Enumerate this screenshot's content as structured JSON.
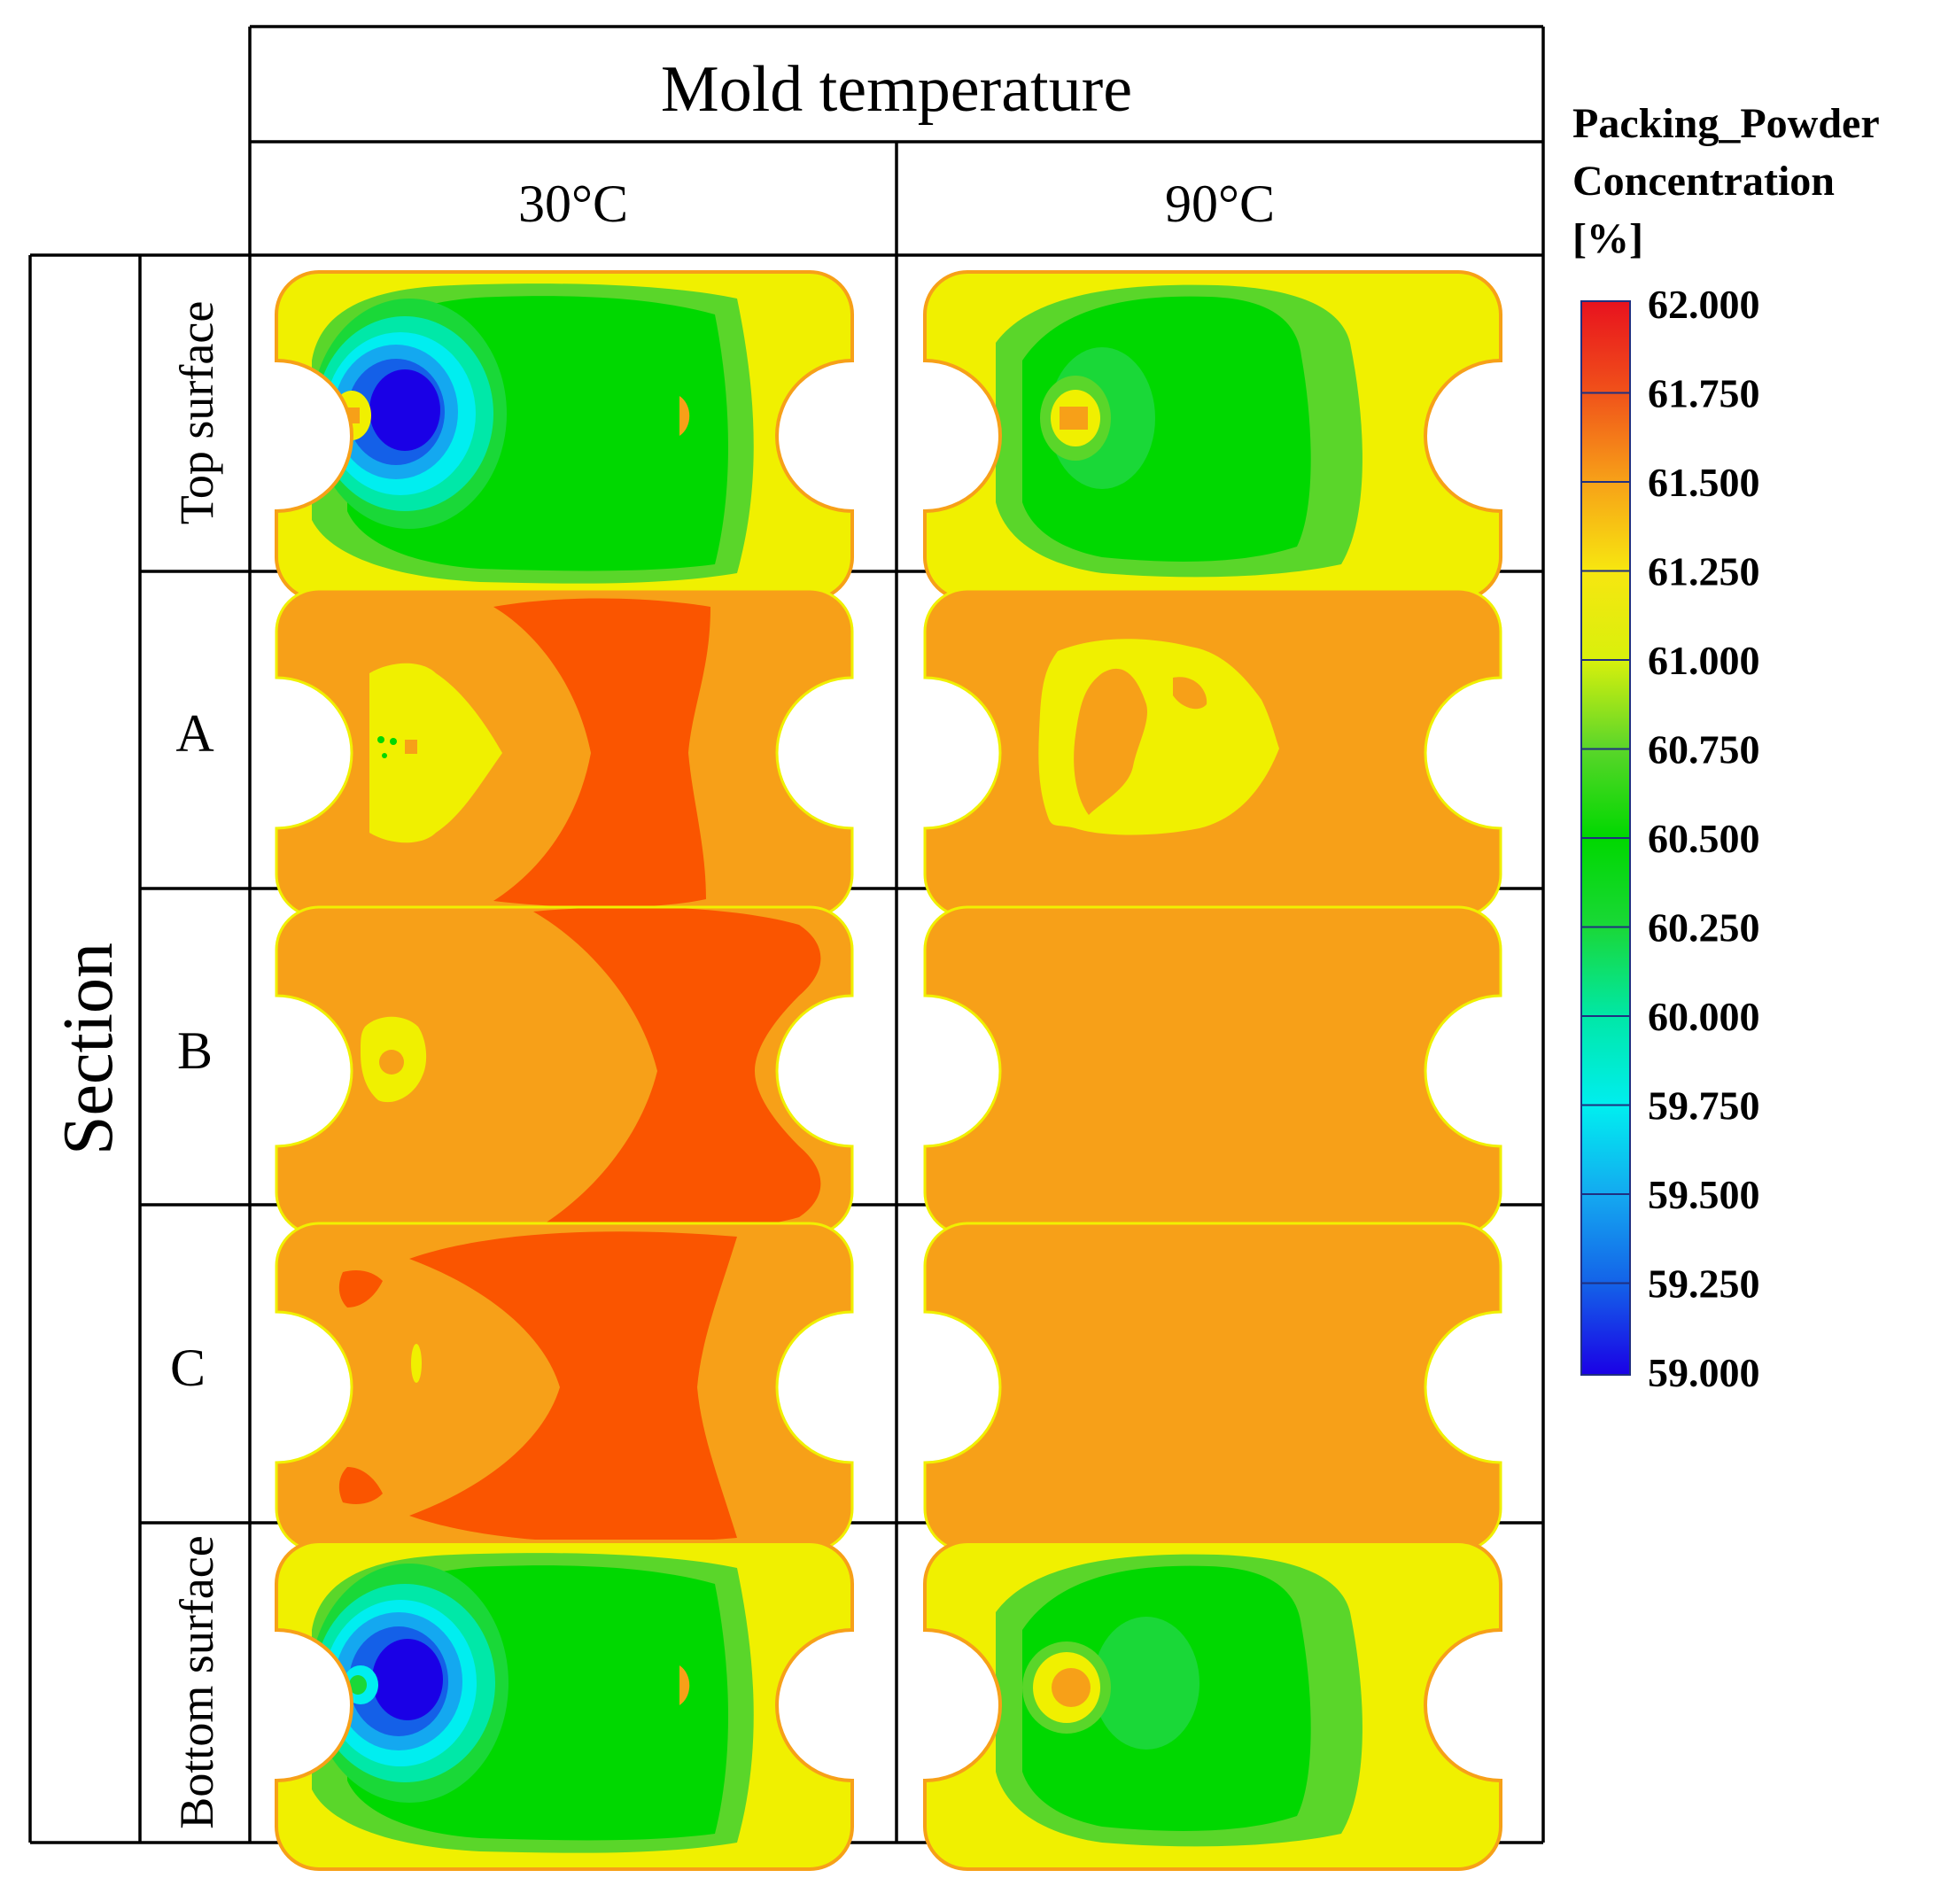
{
  "figure": {
    "header": "Mold temperature",
    "columns": [
      {
        "label": "30°C"
      },
      {
        "label": "90°C"
      }
    ],
    "section_label": "Section",
    "rows": [
      {
        "label": "Top surface"
      },
      {
        "label": "A"
      },
      {
        "label": "B"
      },
      {
        "label": "C"
      },
      {
        "label": "Bottom surface"
      }
    ]
  },
  "legend": {
    "title_lines": [
      "Packing_Powder",
      "Concentration",
      "[%]"
    ],
    "ticks": [
      "62.000",
      "61.750",
      "61.500",
      "61.250",
      "61.000",
      "60.750",
      "60.500",
      "60.250",
      "60.000",
      "59.750",
      "59.500",
      "59.250",
      "59.000"
    ],
    "stops": [
      "#e8121e",
      "#f0501a",
      "#f7a018",
      "#f7e610",
      "#d9f00c",
      "#5ad62a",
      "#00d800",
      "#1ad838",
      "#00e8a8",
      "#00eef0",
      "#14a8f0",
      "#1460e8",
      "#1a00e6"
    ]
  },
  "colors": {
    "dark_blue": "#1a00e6",
    "blue": "#1460e8",
    "light_blue": "#14a8f0",
    "cyan": "#00eef0",
    "aqua": "#00e8a8",
    "bright_green": "#1ad838",
    "green": "#00d800",
    "light_green": "#5ad62a",
    "yellow": "#f0f000",
    "orange": "#f7a018",
    "red_orange": "#fa5500"
  }
}
